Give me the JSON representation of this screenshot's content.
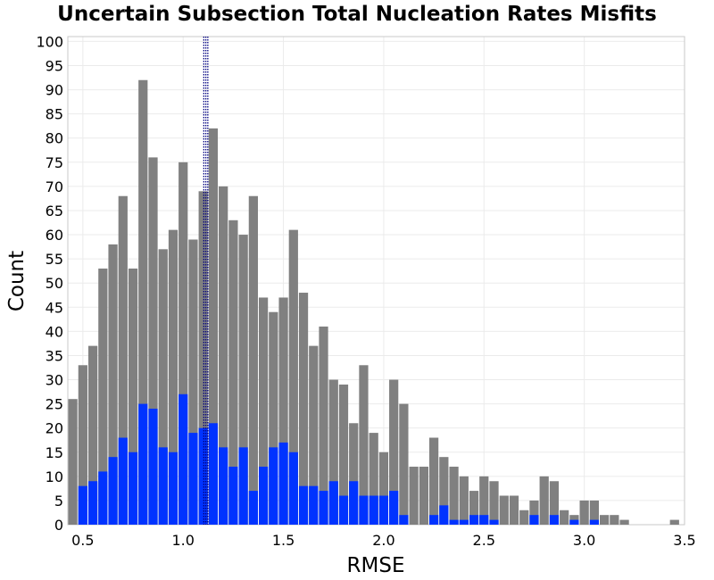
{
  "chart_data": {
    "type": "bar",
    "title": "Uncertain Subsection Total Nucleation Rates Misfits",
    "xlabel": "RMSE",
    "ylabel": "Count",
    "xlim": [
      0.425,
      3.5
    ],
    "ylim": [
      0,
      101
    ],
    "xticks": [
      "0.5",
      "1.0",
      "1.5",
      "2.0",
      "2.5",
      "3.0",
      "3.5"
    ],
    "yticks": [
      "0",
      "5",
      "10",
      "15",
      "20",
      "25",
      "30",
      "35",
      "40",
      "45",
      "50",
      "55",
      "60",
      "65",
      "70",
      "75",
      "80",
      "85",
      "90",
      "95",
      "100"
    ],
    "bin_width": 0.05,
    "grid": true,
    "colors": {
      "all": "#808080",
      "subset": "#0033ff",
      "ref_line": "#000080"
    },
    "series": [
      {
        "x": [
          0.45,
          0.5,
          0.55,
          0.6,
          0.65,
          0.7,
          0.75,
          0.8,
          0.85,
          0.9,
          0.95,
          1.0,
          1.05,
          1.1,
          1.15,
          1.2,
          1.25,
          1.3,
          1.35,
          1.4,
          1.45,
          1.5,
          1.55,
          1.6,
          1.65,
          1.7,
          1.75,
          1.8,
          1.85,
          1.9,
          1.95,
          2.0,
          2.05,
          2.1,
          2.15,
          2.2,
          2.25,
          2.3,
          2.35,
          2.4,
          2.45,
          2.5,
          2.55,
          2.6,
          2.65,
          2.7,
          2.75,
          2.8,
          2.85,
          2.9,
          2.95,
          3.0,
          3.05,
          3.1,
          3.15,
          3.2,
          3.25,
          3.3,
          3.35,
          3.4,
          3.45
        ],
        "values": [
          26,
          33,
          37,
          53,
          58,
          68,
          53,
          92,
          76,
          57,
          61,
          75,
          59,
          69,
          82,
          70,
          63,
          60,
          68,
          47,
          44,
          47,
          61,
          48,
          37,
          41,
          30,
          29,
          21,
          33,
          19,
          15,
          30,
          25,
          12,
          12,
          18,
          14,
          12,
          10,
          7,
          10,
          9,
          6,
          6,
          3,
          5,
          10,
          9,
          3,
          2,
          5,
          5,
          2,
          2,
          1,
          0,
          0,
          0,
          0,
          1
        ]
      },
      {
        "x": [
          0.45,
          0.5,
          0.55,
          0.6,
          0.65,
          0.7,
          0.75,
          0.8,
          0.85,
          0.9,
          0.95,
          1.0,
          1.05,
          1.1,
          1.15,
          1.2,
          1.25,
          1.3,
          1.35,
          1.4,
          1.45,
          1.5,
          1.55,
          1.6,
          1.65,
          1.7,
          1.75,
          1.8,
          1.85,
          1.9,
          1.95,
          2.0,
          2.05,
          2.1,
          2.15,
          2.2,
          2.25,
          2.3,
          2.35,
          2.4,
          2.45,
          2.5,
          2.55,
          2.6,
          2.65,
          2.7,
          2.75,
          2.8,
          2.85,
          2.9,
          2.95,
          3.0,
          3.05,
          3.1,
          3.15,
          3.2,
          3.25,
          3.3,
          3.35,
          3.4,
          3.45
        ],
        "values": [
          0,
          8,
          9,
          11,
          14,
          18,
          15,
          25,
          24,
          16,
          15,
          27,
          19,
          20,
          21,
          16,
          12,
          16,
          7,
          12,
          16,
          17,
          15,
          8,
          8,
          7,
          9,
          6,
          9,
          6,
          6,
          6,
          7,
          2,
          0,
          0,
          2,
          4,
          1,
          1,
          2,
          2,
          1,
          0,
          0,
          0,
          2,
          0,
          2,
          0,
          1,
          0,
          1,
          0,
          0,
          0,
          0,
          0,
          0,
          0,
          0
        ]
      }
    ],
    "reference_lines": [
      {
        "x": 1.103,
        "style": "dotted"
      },
      {
        "x": 1.113,
        "style": "dotted"
      },
      {
        "x": 1.123,
        "style": "dotted"
      }
    ]
  }
}
